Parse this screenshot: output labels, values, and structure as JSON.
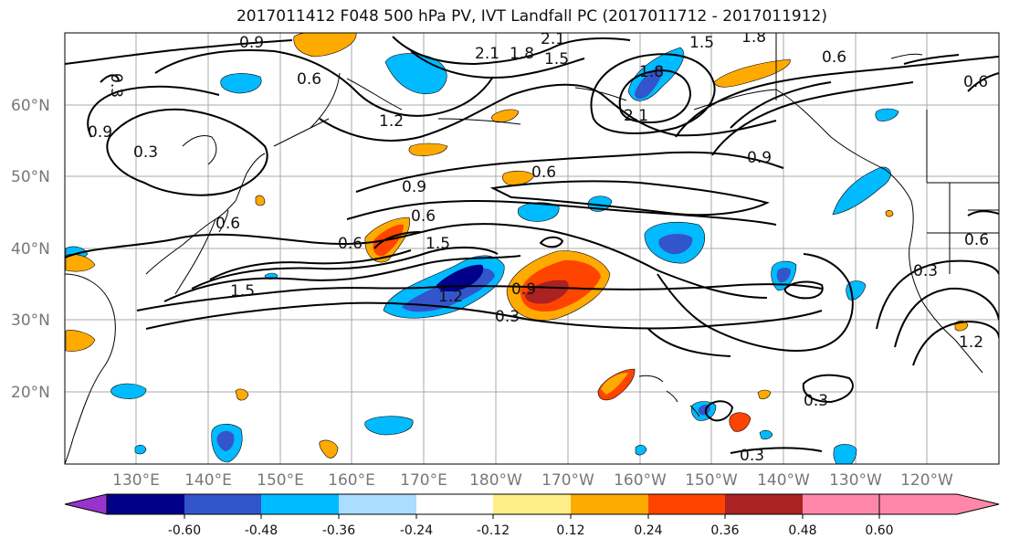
{
  "title": "2017011412 F048 500 hPa PV, IVT Landfall PC (2017011712 - 2017011912)",
  "lat_labels": [
    "60°N",
    "50°N",
    "40°N",
    "30°N",
    "20°N"
  ],
  "lon_labels": [
    "130°E",
    "140°E",
    "150°E",
    "160°E",
    "170°E",
    "180°W",
    "170°W",
    "160°W",
    "150°W",
    "140°W",
    "130°W",
    "120°W"
  ],
  "colorbar": {
    "colors": [
      "#9933cc",
      "#000088",
      "#3355cc",
      "#00bbff",
      "#aaddff",
      "#ffffff",
      "#ffee88",
      "#ffaa00",
      "#ff4400",
      "#aa2222",
      "#ff88aa"
    ],
    "tick_labels": [
      "-0.60",
      "-0.48",
      "-0.36",
      "-0.24",
      "-0.12",
      "0.12",
      "0.24",
      "0.36",
      "0.48",
      "0.60"
    ]
  },
  "contour_labels": [
    "0.9",
    "0.3",
    "0.6",
    "0.9",
    "0.3",
    "0.6",
    "2.1",
    "1.8",
    "1.5",
    "2.1",
    "1.8",
    "1.5",
    "1.2",
    "2.1",
    "1.8",
    "0.6",
    "0.6",
    "0.9",
    "0.6",
    "0.9",
    "0.6",
    "0.6",
    "1.5",
    "1.5",
    "1.2",
    "0.9",
    "0.3",
    "0.3",
    "0.3",
    "0.3",
    "0.6",
    "1.2",
    "1.5"
  ],
  "colors": {
    "grid": "#aaaaaa",
    "coast": "#000000",
    "contour": "#000000"
  }
}
